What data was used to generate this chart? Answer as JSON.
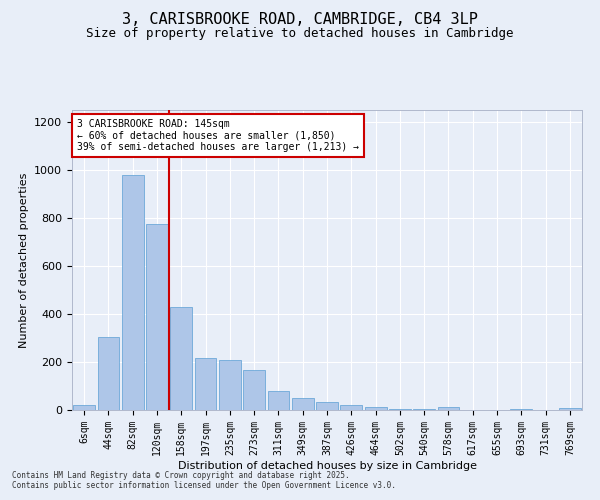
{
  "title": "3, CARISBROOKE ROAD, CAMBRIDGE, CB4 3LP",
  "subtitle": "Size of property relative to detached houses in Cambridge",
  "xlabel": "Distribution of detached houses by size in Cambridge",
  "ylabel": "Number of detached properties",
  "categories": [
    "6sqm",
    "44sqm",
    "82sqm",
    "120sqm",
    "158sqm",
    "197sqm",
    "235sqm",
    "273sqm",
    "311sqm",
    "349sqm",
    "387sqm",
    "426sqm",
    "464sqm",
    "502sqm",
    "540sqm",
    "578sqm",
    "617sqm",
    "655sqm",
    "693sqm",
    "731sqm",
    "769sqm"
  ],
  "values": [
    22,
    305,
    980,
    775,
    430,
    215,
    210,
    165,
    80,
    50,
    32,
    20,
    12,
    5,
    5,
    12,
    0,
    0,
    5,
    0,
    10
  ],
  "bar_color": "#aec6e8",
  "bar_edge_color": "#5a9fd4",
  "background_color": "#e8eef8",
  "grid_color": "#ffffff",
  "vline_x": 3.5,
  "vline_color": "#cc0000",
  "annotation_text": "3 CARISBROOKE ROAD: 145sqm\n← 60% of detached houses are smaller (1,850)\n39% of semi-detached houses are larger (1,213) →",
  "annotation_box_color": "#ffffff",
  "annotation_box_edge_color": "#cc0000",
  "footer_line1": "Contains HM Land Registry data © Crown copyright and database right 2025.",
  "footer_line2": "Contains public sector information licensed under the Open Government Licence v3.0.",
  "ylim": [
    0,
    1250
  ],
  "yticks": [
    0,
    200,
    400,
    600,
    800,
    1000,
    1200
  ],
  "title_fontsize": 11,
  "subtitle_fontsize": 9,
  "tick_fontsize": 7,
  "ylabel_fontsize": 8,
  "xlabel_fontsize": 8,
  "annotation_fontsize": 7,
  "footer_fontsize": 5.5
}
